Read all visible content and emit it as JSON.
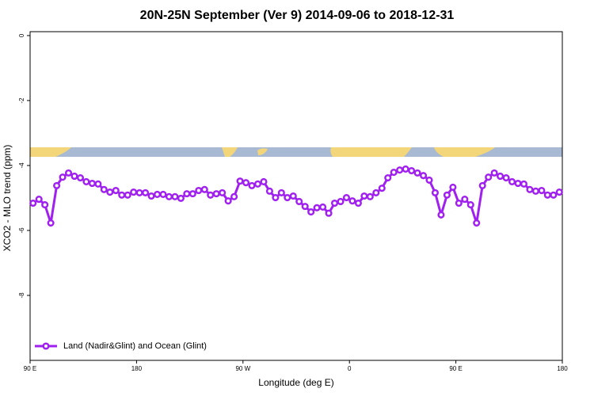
{
  "chart_data": {
    "type": "line",
    "title": "20N-25N September (Ver 9)   2014-09-06 to 2018-12-31",
    "x_label": "Longitude (deg E)",
    "y_label": "XCO2 - MLO trend (ppm)",
    "xlim": [
      90,
      540
    ],
    "xticks": [
      {
        "value": 90,
        "label": "90 E"
      },
      180,
      {
        "value": 270,
        "label": "90 W"
      },
      {
        "value": 360,
        "label": "0"
      },
      {
        "value": 450,
        "label": "90 E"
      },
      {
        "value": 540,
        "label": "180"
      }
    ],
    "ylim": [
      -10,
      0.12
    ],
    "yticks": [
      0,
      -2,
      -4,
      -6,
      -8
    ],
    "legend": "bottomleft",
    "x": [
      92.5,
      97.5,
      102.5,
      107.5,
      112.5,
      117.5,
      122.5,
      127.5,
      132.5,
      137.5,
      142.5,
      147.5,
      152.5,
      157.5,
      162.5,
      167.5,
      172.5,
      177.5,
      182.5,
      187.5,
      192.5,
      197.5,
      202.5,
      207.5,
      212.5,
      217.5,
      222.5,
      227.5,
      232.5,
      237.5,
      242.5,
      247.5,
      252.5,
      257.5,
      262.5,
      267.5,
      272.5,
      277.5,
      282.5,
      287.5,
      292.5,
      297.5,
      302.5,
      307.5,
      312.5,
      317.5,
      322.5,
      327.5,
      332.5,
      337.5,
      342.5,
      347.5,
      352.5,
      357.5,
      362.5,
      367.5,
      372.5,
      377.5,
      382.5,
      387.5,
      392.5,
      397.5,
      402.5,
      407.5,
      412.5,
      417.5,
      422.5,
      427.5,
      432.5,
      437.5,
      442.5,
      447.5,
      452.5,
      457.5,
      462.5,
      467.5,
      472.5,
      477.5,
      482.5,
      487.5,
      492.5,
      497.5,
      502.5,
      507.5,
      512.5,
      517.5,
      522.5,
      527.5,
      532.5,
      537.5
    ],
    "series": [
      {
        "name": "Land (Nadir&Glint) and Ocean (Glint)",
        "color": "#a020f0",
        "values": [
          -5.16,
          -5.04,
          -5.21,
          -5.77,
          -4.62,
          -4.36,
          -4.23,
          -4.33,
          -4.38,
          -4.5,
          -4.55,
          -4.57,
          -4.74,
          -4.82,
          -4.77,
          -4.91,
          -4.91,
          -4.82,
          -4.84,
          -4.84,
          -4.94,
          -4.89,
          -4.89,
          -4.96,
          -4.96,
          -5.01,
          -4.87,
          -4.87,
          -4.77,
          -4.74,
          -4.91,
          -4.87,
          -4.84,
          -5.09,
          -4.96,
          -4.48,
          -4.53,
          -4.62,
          -4.57,
          -4.5,
          -4.79,
          -4.99,
          -4.84,
          -4.99,
          -4.94,
          -5.11,
          -5.26,
          -5.43,
          -5.3,
          -5.28,
          -5.47,
          -5.16,
          -5.11,
          -4.99,
          -5.09,
          -5.16,
          -4.94,
          -4.96,
          -4.84,
          -4.7,
          -4.38,
          -4.21,
          -4.14,
          -4.11,
          -4.16,
          -4.23,
          -4.31,
          -4.45,
          -4.84,
          -5.52,
          -4.91,
          -4.67,
          -5.16,
          -5.04,
          -5.21,
          -5.77,
          -4.62,
          -4.36,
          -4.23,
          -4.33,
          -4.38,
          -4.5,
          -4.55,
          -4.57,
          -4.74,
          -4.79,
          -4.77,
          -4.91,
          -4.91,
          -4.82
        ]
      }
    ]
  }
}
